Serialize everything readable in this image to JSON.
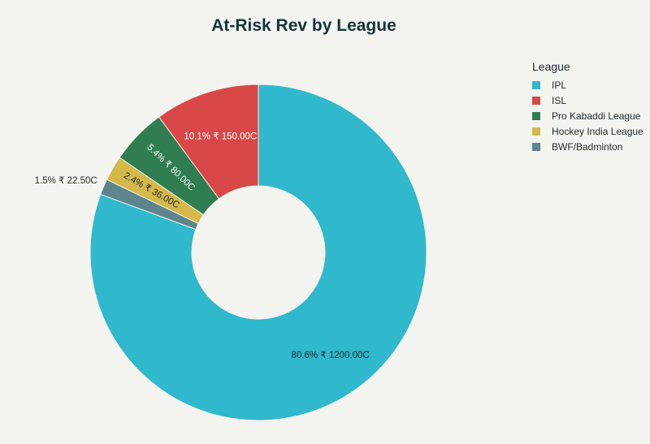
{
  "chart_data": {
    "type": "pie",
    "title": "At-Risk Rev by League",
    "legend_title": "League",
    "legend_position": "top-right",
    "hole": true,
    "categories": [
      "IPL",
      "ISL",
      "Pro Kabaddi League",
      "Hockey India League",
      "BWF/Badminton"
    ],
    "values": [
      1200,
      150,
      80,
      36,
      22.5
    ],
    "labels": [
      "80.6% ₹ 1200.00C",
      "10.1% ₹ 150.00C",
      "5.4% ₹ 80.00C",
      "2.4% ₹ 36.00C",
      "1.5% ₹ 22.50C"
    ],
    "colors": [
      "#30b8cc",
      "#d94848",
      "#2f7d50",
      "#d4b84a",
      "#5e858d"
    ]
  }
}
